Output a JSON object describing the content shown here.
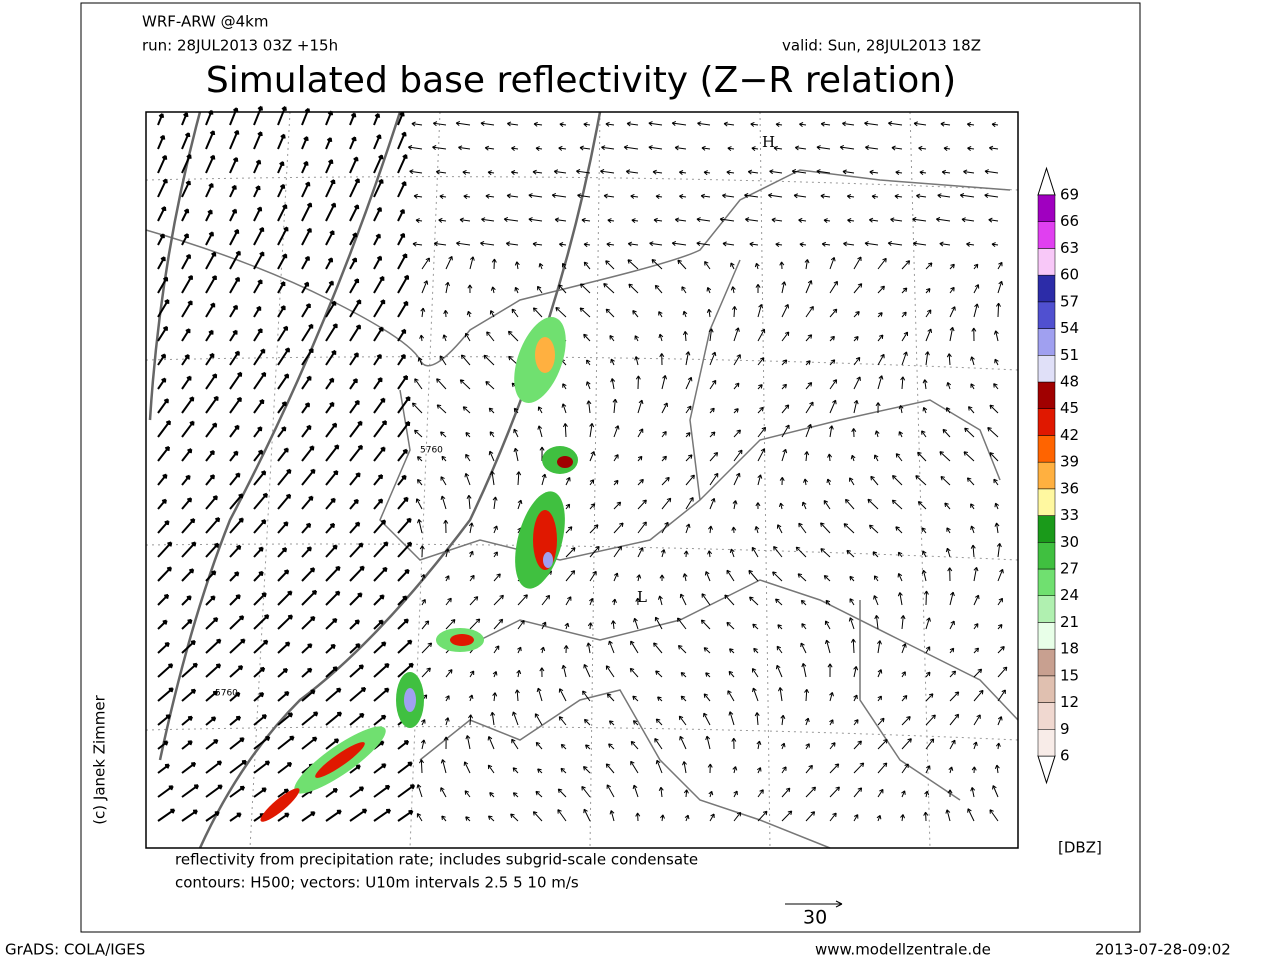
{
  "header": {
    "model": "WRF-ARW @4km",
    "run": "run: 28JUL2013 03Z +15h",
    "valid": "valid: Sun, 28JUL2013 18Z",
    "title": "Simulated base reflectivity (Z−R relation)"
  },
  "map": {
    "contour_labels": [
      "5760",
      "5760"
    ],
    "high": "H",
    "low": "L"
  },
  "colorbar": {
    "levels": [
      6,
      9,
      12,
      15,
      18,
      21,
      24,
      27,
      30,
      33,
      36,
      39,
      42,
      45,
      48,
      51,
      54,
      57,
      60,
      63,
      66,
      69
    ],
    "colors": [
      "#f8ece8",
      "#f0d8d0",
      "#e0c0b0",
      "#c8a090",
      "#e8ffe8",
      "#b0f0b0",
      "#70e070",
      "#40c040",
      "#1a9a1a",
      "#fff8a0",
      "#ffb040",
      "#ff6400",
      "#e01800",
      "#a00000",
      "#e0e0f8",
      "#a0a0f0",
      "#5050d0",
      "#2c2ca8",
      "#f8c8f8",
      "#e040f0",
      "#a000c0"
    ],
    "unit": "[DBZ]"
  },
  "notes": [
    "reflectivity from precipitation rate; includes subgrid-scale condensate",
    "contours: H500; vectors: U10m intervals 2.5 5 10 m/s"
  ],
  "vector_reference": "30",
  "credit": "(c) Janek Zimmer",
  "footer": {
    "left": "GrADS: COLA/IGES",
    "center": "www.modellzentrale.de",
    "right": "2013-07-28-09:02"
  }
}
